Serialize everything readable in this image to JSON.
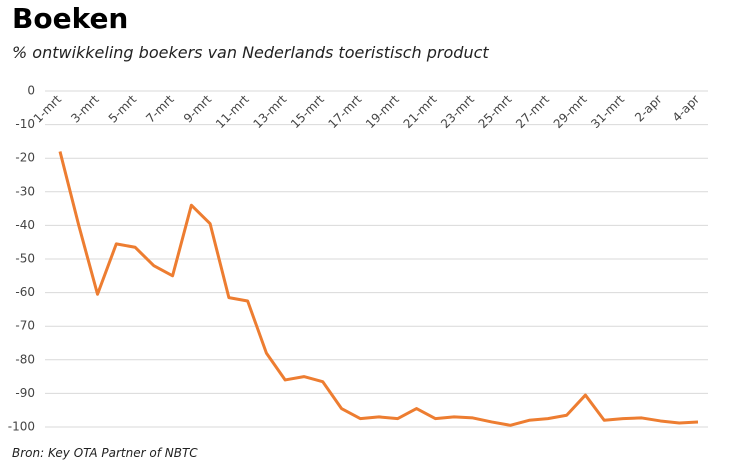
{
  "chart_data": {
    "type": "line",
    "title": "Boeken",
    "subtitle": "% ontwikkeling boekers van Nederlands toeristisch product",
    "source": "Bron: Key OTA Partner of NBTC",
    "categories": [
      "1-mrt",
      null,
      "3-mrt",
      null,
      "5-mrt",
      null,
      "7-mrt",
      null,
      "9-mrt",
      null,
      "11-mrt",
      null,
      "13-mrt",
      null,
      "15-mrt",
      null,
      "17-mrt",
      null,
      "19-mrt",
      null,
      "21-mrt",
      null,
      "23-mrt",
      null,
      "25-mrt",
      null,
      "27-mrt",
      null,
      "29-mrt",
      null,
      "31-mrt",
      null,
      "2-apr",
      null,
      "4-apr"
    ],
    "series": [
      {
        "name": "Boekers",
        "color": "#ed7d31",
        "values": [
          -18,
          -40,
          -60.5,
          -45.5,
          -46.5,
          -52,
          -55,
          -34,
          -39.5,
          -61.5,
          -62.5,
          -78,
          -86,
          -85,
          -86.5,
          -94.5,
          -97.5,
          -97,
          -97.5,
          -94.5,
          -97.5,
          -97,
          -97.3,
          -98.5,
          -99.5,
          -98,
          -97.5,
          -96.5,
          -90.5,
          -98,
          -97.5,
          -97.3,
          -98.2,
          -98.8,
          -98.5
        ]
      }
    ],
    "ylim": [
      -100,
      0
    ],
    "yticks": [
      0,
      -10,
      -20,
      -30,
      -40,
      -50,
      -60,
      -70,
      -80,
      -90,
      -100
    ],
    "grid": true
  }
}
